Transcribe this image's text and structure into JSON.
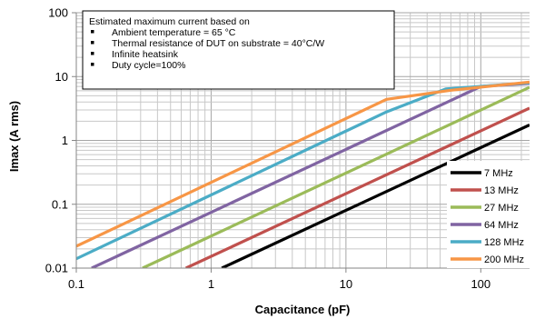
{
  "chart_data": {
    "type": "line",
    "x_scale": "log",
    "y_scale": "log",
    "xlim": [
      0.1,
      230
    ],
    "ylim": [
      0.01,
      100
    ],
    "xlabel": "Capacitance (pF)",
    "ylabel": "Imax (A rms)",
    "x_ticks": [
      "0.1",
      "1",
      "10",
      "100"
    ],
    "y_ticks": [
      "100",
      "10",
      "1",
      "0.1",
      "0.01"
    ],
    "grid": true,
    "legend_position": "right",
    "annotation": {
      "title": "Estimated maximum current based on",
      "items": [
        "Ambient temperature = 65 °C",
        "Thermal resistance of  DUT on substrate  = 40°C/W",
        "Infinite heatsink",
        "Duty cycle=100%"
      ]
    },
    "series": [
      {
        "name": "7 MHz",
        "color": "#000000",
        "x": [
          1.2,
          230
        ],
        "y": [
          0.01,
          1.75
        ]
      },
      {
        "name": "13 MHz",
        "color": "#c0504d",
        "x": [
          0.65,
          230
        ],
        "y": [
          0.01,
          3.2
        ]
      },
      {
        "name": "27 MHz",
        "color": "#9bbb59",
        "x": [
          0.31,
          230
        ],
        "y": [
          0.01,
          6.8
        ]
      },
      {
        "name": "64 MHz",
        "color": "#8064a2",
        "x": [
          0.13,
          100,
          230
        ],
        "y": [
          0.01,
          7.0,
          7.8
        ]
      },
      {
        "name": "128 MHz",
        "color": "#4bacc6",
        "x": [
          0.1,
          20,
          55,
          230
        ],
        "y": [
          0.014,
          2.8,
          6.4,
          8.0
        ]
      },
      {
        "name": "200 MHz",
        "color": "#f79646",
        "x": [
          0.1,
          20,
          60,
          230
        ],
        "y": [
          0.022,
          4.4,
          6.1,
          8.2
        ]
      }
    ]
  }
}
